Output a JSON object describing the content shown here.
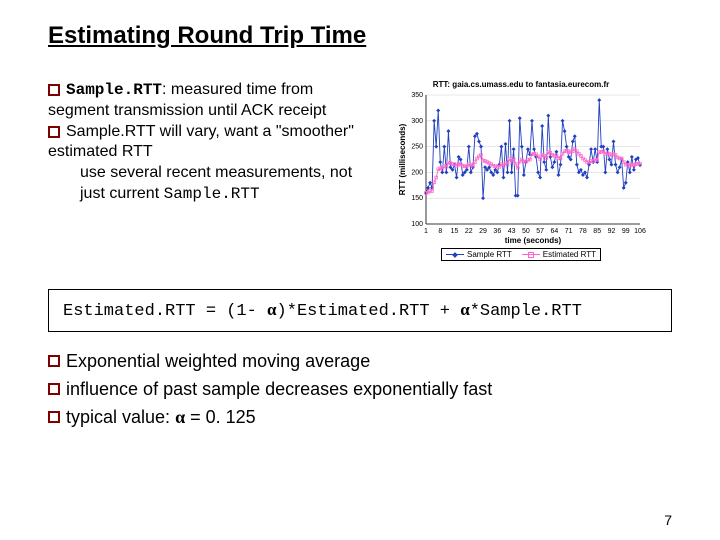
{
  "title": "Estimating Round Trip Time",
  "bullets": {
    "b1_term": "Sample.RTT",
    "b1_rest": ": measured time from segment transmission until ACK receipt",
    "b2_pre": "Sample.RTT will vary, want a ",
    "b2_mid": "\"smoother\" estimated RTT",
    "b2_sub1": "use several recent measurements, not just current ",
    "b2_sub2": "Sample.RTT"
  },
  "chart": {
    "title": "RTT: gaia.cs.umass.edu to fantasia.eurecom.fr",
    "xlabel": "time (seconds)",
    "ylabel": "RTT (milliseconds)",
    "xlim": [
      1,
      106
    ],
    "ylim": [
      100,
      350
    ],
    "xticks": [
      1,
      8,
      15,
      22,
      29,
      36,
      43,
      50,
      57,
      64,
      71,
      78,
      85,
      92,
      99,
      106
    ],
    "yticks": [
      100,
      150,
      200,
      250,
      300,
      350
    ],
    "grid_color": "#d0d0d0",
    "background": "#ffffff",
    "axis_color": "#000000",
    "tick_fontsize": 7,
    "label_fontsize": 8,
    "series": {
      "sample": {
        "label": "Sample RTT",
        "color": "#2040c0",
        "marker": "diamond",
        "y": [
          160,
          170,
          180,
          170,
          300,
          250,
          320,
          220,
          200,
          250,
          200,
          280,
          210,
          205,
          215,
          190,
          230,
          225,
          195,
          200,
          205,
          250,
          200,
          210,
          270,
          275,
          260,
          250,
          150,
          210,
          205,
          210,
          200,
          195,
          205,
          200,
          215,
          250,
          190,
          255,
          200,
          300,
          200,
          245,
          155,
          155,
          305,
          250,
          195,
          220,
          245,
          235,
          300,
          245,
          230,
          200,
          190,
          290,
          220,
          205,
          310,
          230,
          210,
          220,
          240,
          195,
          215,
          300,
          280,
          250,
          230,
          225,
          260,
          270,
          215,
          200,
          205,
          195,
          200,
          190,
          215,
          245,
          220,
          245,
          220,
          340,
          250,
          250,
          200,
          245,
          225,
          215,
          260,
          215,
          200,
          210,
          225,
          170,
          180,
          220,
          200,
          230,
          205,
          225,
          228,
          214
        ]
      },
      "estimated": {
        "label": "Estimated RTT",
        "color": "#ff66cc",
        "marker": "square",
        "y": [
          160,
          161,
          164,
          164,
          181,
          190,
          206,
          208,
          207,
          212,
          211,
          219,
          218,
          216,
          216,
          213,
          215,
          216,
          213,
          212,
          211,
          216,
          214,
          213,
          220,
          227,
          231,
          234,
          223,
          222,
          220,
          218,
          216,
          213,
          212,
          211,
          211,
          216,
          213,
          218,
          216,
          226,
          223,
          226,
          217,
          209,
          221,
          225,
          221,
          221,
          224,
          225,
          235,
          236,
          235,
          231,
          226,
          234,
          232,
          228,
          239,
          238,
          234,
          232,
          233,
          228,
          227,
          236,
          241,
          242,
          241,
          239,
          241,
          245,
          241,
          236,
          232,
          227,
          224,
          220,
          219,
          222,
          222,
          225,
          224,
          239,
          240,
          241,
          236,
          237,
          236,
          233,
          236,
          234,
          229,
          227,
          227,
          220,
          215,
          215,
          213,
          215,
          214,
          216,
          217,
          217
        ]
      }
    }
  },
  "formula": {
    "p1": "Estimated.RTT = (1- ",
    "p2": ")*Estimated.RTT + ",
    "p3": "*Sample.RTT",
    "alpha": "α"
  },
  "lower": {
    "l1": "Exponential weighted moving average",
    "l2": "influence of past sample decreases exponentially fast",
    "l3_pre": "typical value: ",
    "l3_post": " = 0. 125"
  },
  "pagenum": "7"
}
